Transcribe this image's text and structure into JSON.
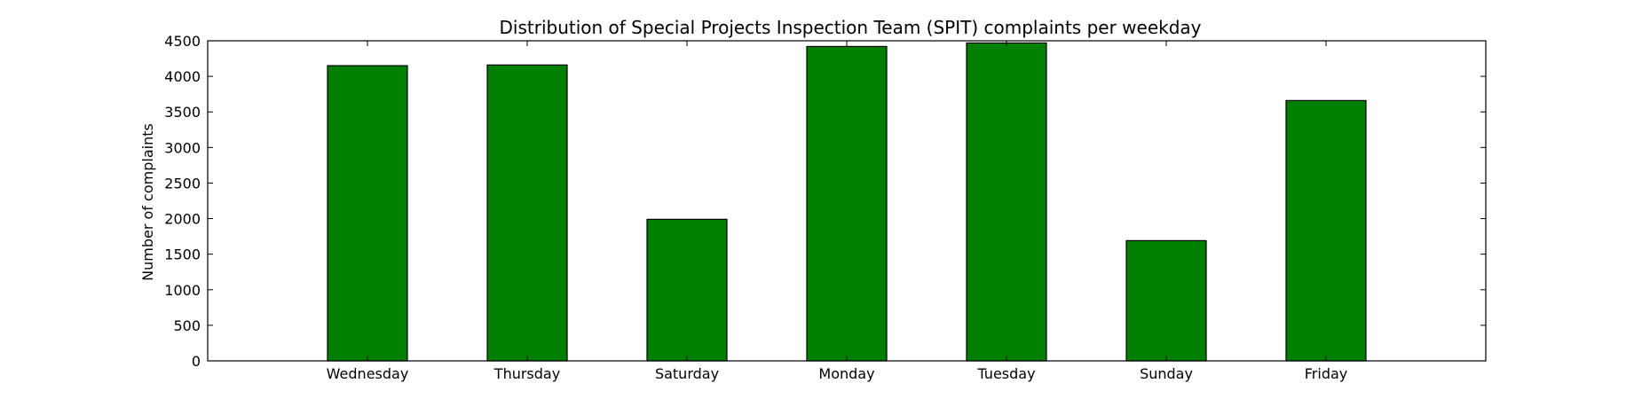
{
  "chart_data": {
    "type": "bar",
    "title": "Distribution of  Special Projects Inspection Team (SPIT) complaints per weekday",
    "xlabel": "",
    "ylabel": "Number of complaints",
    "categories": [
      "Wednesday",
      "Thursday",
      "Saturday",
      "Monday",
      "Tuesday",
      "Sunday",
      "Friday"
    ],
    "values": [
      4150,
      4160,
      1990,
      4420,
      4470,
      1690,
      3660
    ],
    "ylim": [
      0,
      4500
    ],
    "yticks": [
      0,
      500,
      1000,
      1500,
      2000,
      2500,
      3000,
      3500,
      4000,
      4500
    ],
    "bar_color": "#008000",
    "grid": false,
    "legend": false
  }
}
